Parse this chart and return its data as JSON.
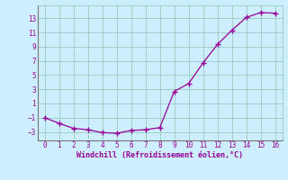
{
  "x": [
    0,
    1,
    2,
    3,
    4,
    5,
    6,
    7,
    8,
    9,
    10,
    11,
    12,
    13,
    14,
    15,
    16
  ],
  "y": [
    -1.0,
    -1.8,
    -2.5,
    -2.7,
    -3.1,
    -3.2,
    -2.8,
    -2.7,
    -2.4,
    2.7,
    3.8,
    6.7,
    9.3,
    11.3,
    13.1,
    13.8,
    13.7
  ],
  "line_color": "#990099",
  "marker_color": "#990099",
  "bg_color": "#cceeff",
  "grid_color": "#99ccbb",
  "xlabel": "Windchill (Refroidissement éolien,°C)",
  "xlabel_color": "#990099",
  "tick_color": "#990099",
  "xlim": [
    -0.5,
    16.5
  ],
  "ylim": [
    -4.2,
    14.8
  ],
  "yticks": [
    -3,
    -1,
    1,
    3,
    5,
    7,
    9,
    11,
    13
  ],
  "xticks": [
    0,
    1,
    2,
    3,
    4,
    5,
    6,
    7,
    8,
    9,
    10,
    11,
    12,
    13,
    14,
    15,
    16
  ]
}
